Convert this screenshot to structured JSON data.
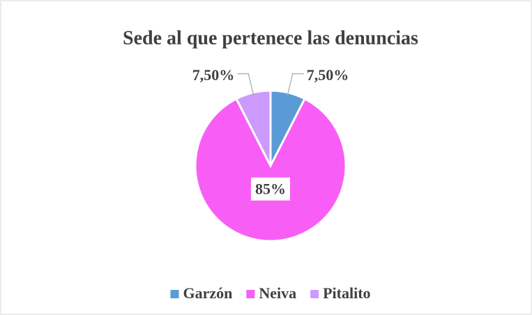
{
  "chart_data": {
    "type": "pie",
    "title": "Sede al que pertenece las denuncias",
    "categories": [
      "Garzón",
      "Neiva",
      "Pitalito"
    ],
    "values": [
      7.5,
      85,
      7.5
    ],
    "value_labels": [
      "7,50%",
      "85%",
      "7,50%"
    ],
    "colors": [
      "#5b9bd5",
      "#f85ef5",
      "#cc99ff"
    ],
    "legend": "bottom"
  }
}
